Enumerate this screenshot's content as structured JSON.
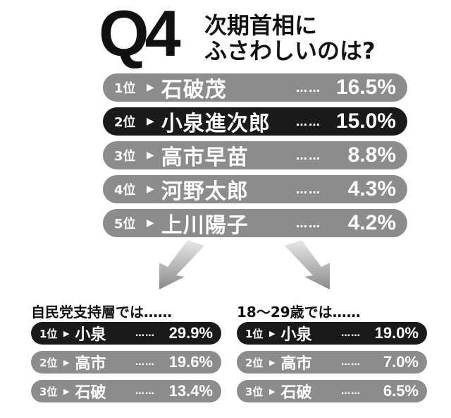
{
  "header": {
    "badge": "Q4",
    "question_line1": "次期首相に",
    "question_line2": "ふさわしいのは?"
  },
  "common": {
    "arrow_symbol": "▶",
    "dots": "……"
  },
  "colors": {
    "highlight": "#1a1a1a",
    "normal": "#8c8c8c",
    "text": "#ffffff"
  },
  "chart_data": [
    {
      "type": "table",
      "title": "次期首相にふさわしいのは?",
      "unit": "%",
      "rows": [
        {
          "rank": "1位",
          "name": "石破茂",
          "value": 16.5,
          "label": "16.5%",
          "highlight": false
        },
        {
          "rank": "2位",
          "name": "小泉進次郎",
          "value": 15.0,
          "label": "15.0%",
          "highlight": true
        },
        {
          "rank": "3位",
          "name": "高市早苗",
          "value": 8.8,
          "label": "8.8%",
          "highlight": false
        },
        {
          "rank": "4位",
          "name": "河野太郎",
          "value": 4.3,
          "label": "4.3%",
          "highlight": false
        },
        {
          "rank": "5位",
          "name": "上川陽子",
          "value": 4.2,
          "label": "4.2%",
          "highlight": false
        }
      ]
    },
    {
      "type": "table",
      "title": "自民党支持層では……",
      "unit": "%",
      "rows": [
        {
          "rank": "1位",
          "name": "小泉",
          "value": 29.9,
          "label": "29.9%",
          "highlight": true
        },
        {
          "rank": "2位",
          "name": "高市",
          "value": 19.6,
          "label": "19.6%",
          "highlight": false
        },
        {
          "rank": "3位",
          "name": "石破",
          "value": 13.4,
          "label": "13.4%",
          "highlight": false
        }
      ]
    },
    {
      "type": "table",
      "title": "18〜29歳では……",
      "unit": "%",
      "rows": [
        {
          "rank": "1位",
          "name": "小泉",
          "value": 19.0,
          "label": "19.0%",
          "highlight": true
        },
        {
          "rank": "2位",
          "name": "高市",
          "value": 7.0,
          "label": "7.0%",
          "highlight": false
        },
        {
          "rank": "3位",
          "name": "石破",
          "value": 6.5,
          "label": "6.5%",
          "highlight": false
        }
      ]
    }
  ]
}
